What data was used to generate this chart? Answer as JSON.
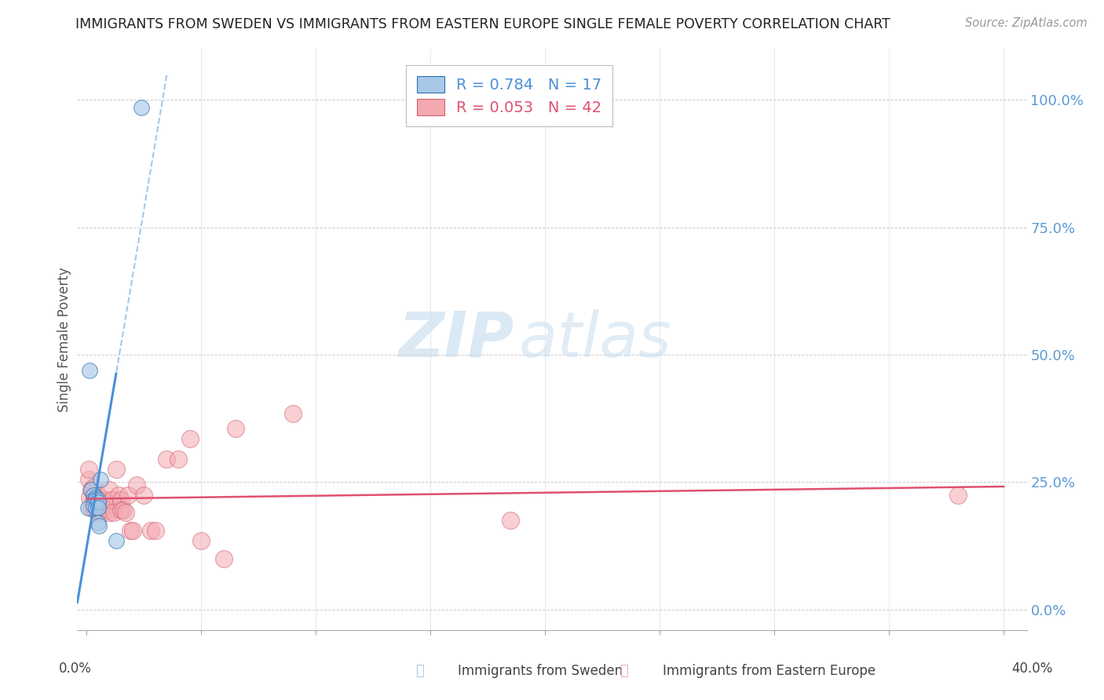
{
  "title": "IMMIGRANTS FROM SWEDEN VS IMMIGRANTS FROM EASTERN EUROPE SINGLE FEMALE POVERTY CORRELATION CHART",
  "source": "Source: ZipAtlas.com",
  "ylabel": "Single Female Poverty",
  "ytick_vals": [
    0.0,
    0.25,
    0.5,
    0.75,
    1.0
  ],
  "ytick_labels": [
    "0.0%",
    "25.0%",
    "50.0%",
    "75.0%",
    "100.0%"
  ],
  "R1": 0.784,
  "N1": 17,
  "R2": 0.053,
  "N2": 42,
  "color_blue": "#a8c8e8",
  "color_pink": "#f4a8b0",
  "color_blue_line": "#4a90d9",
  "color_pink_line": "#e05070",
  "watermark_zip": "ZIP",
  "watermark_atlas": "atlas",
  "legend1_label": "Immigrants from Sweden",
  "legend2_label": "Immigrants from Eastern Europe",
  "sweden_x": [
    0.0005,
    0.0015,
    0.002,
    0.003,
    0.003,
    0.003,
    0.004,
    0.004,
    0.004,
    0.005,
    0.005,
    0.005,
    0.005,
    0.0055,
    0.006,
    0.013,
    0.024
  ],
  "sweden_y": [
    0.2,
    0.47,
    0.235,
    0.225,
    0.215,
    0.205,
    0.22,
    0.215,
    0.2,
    0.215,
    0.21,
    0.2,
    0.17,
    0.165,
    0.255,
    0.135,
    0.985
  ],
  "eastern_x": [
    0.001,
    0.001,
    0.0015,
    0.002,
    0.002,
    0.003,
    0.003,
    0.004,
    0.004,
    0.005,
    0.005,
    0.006,
    0.006,
    0.007,
    0.008,
    0.009,
    0.01,
    0.01,
    0.011,
    0.012,
    0.013,
    0.014,
    0.015,
    0.015,
    0.016,
    0.017,
    0.018,
    0.019,
    0.02,
    0.022,
    0.025,
    0.028,
    0.03,
    0.035,
    0.04,
    0.045,
    0.05,
    0.06,
    0.065,
    0.09,
    0.185,
    0.38
  ],
  "eastern_y": [
    0.255,
    0.275,
    0.22,
    0.235,
    0.2,
    0.24,
    0.2,
    0.215,
    0.195,
    0.225,
    0.19,
    0.215,
    0.195,
    0.2,
    0.215,
    0.195,
    0.235,
    0.19,
    0.215,
    0.19,
    0.275,
    0.225,
    0.215,
    0.195,
    0.195,
    0.19,
    0.225,
    0.155,
    0.155,
    0.245,
    0.225,
    0.155,
    0.155,
    0.295,
    0.295,
    0.335,
    0.135,
    0.1,
    0.355,
    0.385,
    0.175,
    0.225
  ]
}
